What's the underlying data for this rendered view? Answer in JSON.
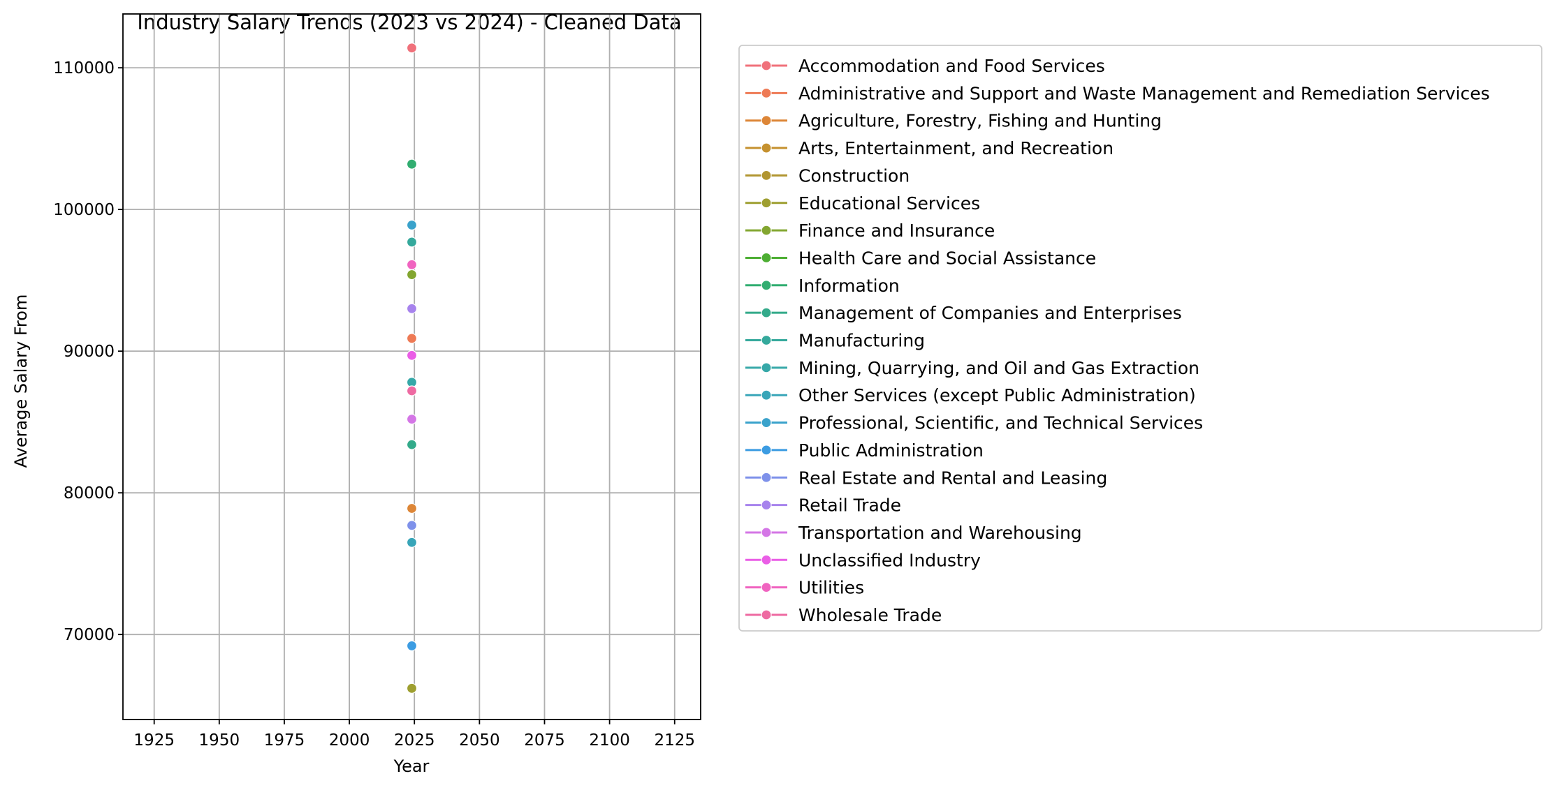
{
  "chart_data": {
    "type": "line",
    "title": "Industry Salary Trends (2023 vs 2024) - Cleaned Data",
    "xlabel": "Year",
    "ylabel": "Average Salary From",
    "xlim": [
      1913,
      2135
    ],
    "ylim": [
      64000,
      113800
    ],
    "x_ticks": [
      1925,
      1950,
      1975,
      2000,
      2025,
      2050,
      2075,
      2100,
      2125
    ],
    "y_ticks": [
      70000,
      80000,
      90000,
      100000,
      110000
    ],
    "grid": true,
    "legend_position": "outside-right",
    "series": [
      {
        "name": "Accommodation and Food Services",
        "color": "#f0717b",
        "x": [
          2024
        ],
        "y": [
          111400
        ]
      },
      {
        "name": "Administrative and Support and Waste Management and Remediation Services",
        "color": "#ee7a55",
        "x": [
          2024
        ],
        "y": [
          90900
        ]
      },
      {
        "name": "Agriculture, Forestry, Fishing and Hunting",
        "color": "#dd8637",
        "x": [
          2024
        ],
        "y": [
          78900
        ]
      },
      {
        "name": "Arts, Entertainment, and Recreation",
        "color": "#c5912f",
        "x": [
          2024
        ],
        "y": [
          95400
        ]
      },
      {
        "name": "Construction",
        "color": "#b19530",
        "x": [
          2024
        ],
        "y": [
          66200
        ]
      },
      {
        "name": "Educational Services",
        "color": "#9e9f30",
        "x": [
          2024
        ],
        "y": [
          66200
        ]
      },
      {
        "name": "Finance and Insurance",
        "color": "#83a630",
        "x": [
          2024
        ],
        "y": [
          95400
        ]
      },
      {
        "name": "Health Care and Social Assistance",
        "color": "#4dae33",
        "x": [
          2024
        ],
        "y": [
          83400
        ]
      },
      {
        "name": "Information",
        "color": "#31ad70",
        "x": [
          2024
        ],
        "y": [
          103200
        ]
      },
      {
        "name": "Management of Companies and Enterprises",
        "color": "#33aa8a",
        "x": [
          2024
        ],
        "y": [
          83400
        ]
      },
      {
        "name": "Manufacturing",
        "color": "#35a99c",
        "x": [
          2024
        ],
        "y": [
          97700
        ]
      },
      {
        "name": "Mining, Quarrying, and Oil and Gas Extraction",
        "color": "#36a8a8",
        "x": [
          2024
        ],
        "y": [
          87800
        ]
      },
      {
        "name": "Other Services (except Public Administration)",
        "color": "#38a5b8",
        "x": [
          2024
        ],
        "y": [
          76500
        ]
      },
      {
        "name": "Professional, Scientific, and Technical Services",
        "color": "#3aa2cb",
        "x": [
          2024
        ],
        "y": [
          98900
        ]
      },
      {
        "name": "Public Administration",
        "color": "#3c9ce2",
        "x": [
          2024
        ],
        "y": [
          69200
        ]
      },
      {
        "name": "Real Estate and Rental and Leasing",
        "color": "#7e91ea",
        "x": [
          2024
        ],
        "y": [
          77700
        ]
      },
      {
        "name": "Retail Trade",
        "color": "#a783ed",
        "x": [
          2024
        ],
        "y": [
          93000
        ]
      },
      {
        "name": "Transportation and Warehousing",
        "color": "#d476e6",
        "x": [
          2024
        ],
        "y": [
          85200
        ]
      },
      {
        "name": "Unclassified Industry",
        "color": "#ea5ee6",
        "x": [
          2024
        ],
        "y": [
          89700
        ]
      },
      {
        "name": "Utilities",
        "color": "#f064c0",
        "x": [
          2024
        ],
        "y": [
          96100
        ]
      },
      {
        "name": "Wholesale Trade",
        "color": "#ee6aa2",
        "x": [
          2024
        ],
        "y": [
          87200
        ]
      }
    ]
  }
}
